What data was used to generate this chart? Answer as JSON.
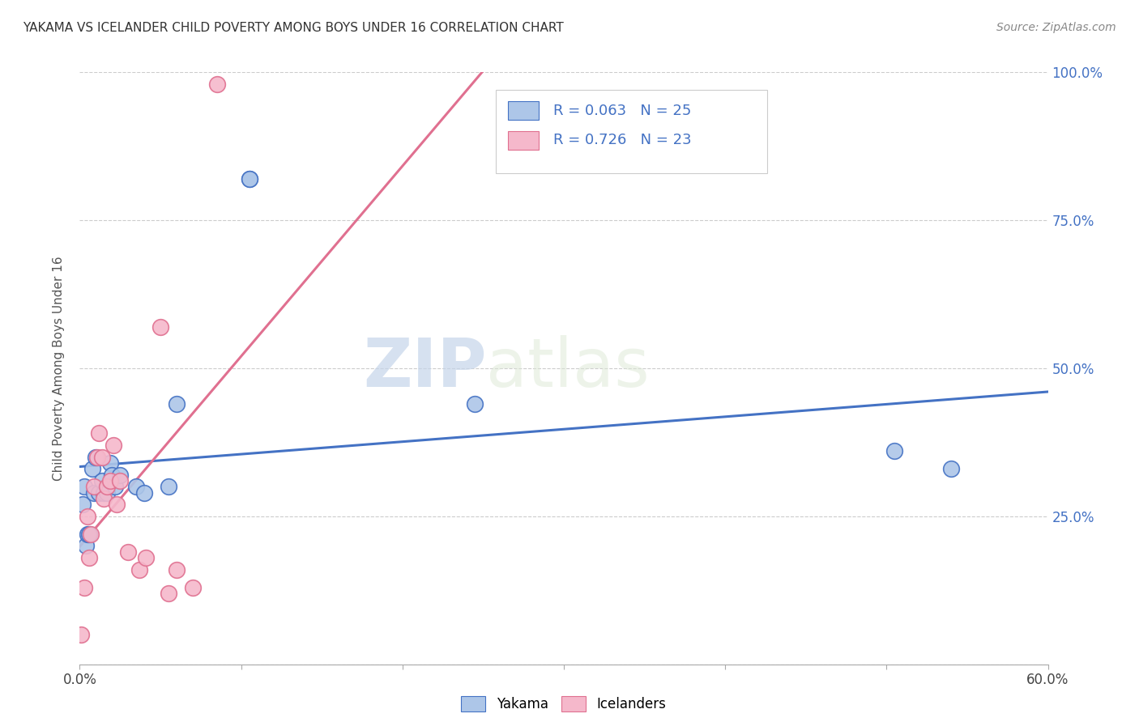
{
  "title": "YAKAMA VS ICELANDER CHILD POVERTY AMONG BOYS UNDER 16 CORRELATION CHART",
  "source": "Source: ZipAtlas.com",
  "ylabel": "Child Poverty Among Boys Under 16",
  "watermark_zip": "ZIP",
  "watermark_atlas": "atlas",
  "xlim": [
    0.0,
    0.6
  ],
  "ylim": [
    -0.05,
    1.05
  ],
  "plot_ylim": [
    0.0,
    1.0
  ],
  "xticks": [
    0.0,
    0.1,
    0.2,
    0.3,
    0.4,
    0.5,
    0.6
  ],
  "yticks": [
    0.0,
    0.25,
    0.5,
    0.75,
    1.0
  ],
  "xtick_labels": [
    "0.0%",
    "",
    "",
    "",
    "",
    "",
    "60.0%"
  ],
  "ytick_labels_right": [
    "",
    "25.0%",
    "50.0%",
    "75.0%",
    "100.0%"
  ],
  "yakama_R": 0.063,
  "yakama_N": 25,
  "icelander_R": 0.726,
  "icelander_N": 23,
  "yakama_color": "#adc6e8",
  "icelander_color": "#f5b8cb",
  "line_yakama_color": "#4472c4",
  "line_icelander_color": "#e07090",
  "yakama_x": [
    0.002,
    0.003,
    0.004,
    0.005,
    0.006,
    0.008,
    0.009,
    0.01,
    0.012,
    0.014,
    0.015,
    0.017,
    0.019,
    0.02,
    0.022,
    0.025,
    0.035,
    0.04,
    0.055,
    0.06,
    0.105,
    0.105,
    0.245,
    0.505,
    0.54
  ],
  "yakama_y": [
    0.27,
    0.3,
    0.2,
    0.22,
    0.22,
    0.33,
    0.29,
    0.35,
    0.29,
    0.31,
    0.29,
    0.29,
    0.34,
    0.32,
    0.3,
    0.32,
    0.3,
    0.29,
    0.3,
    0.44,
    0.82,
    0.82,
    0.44,
    0.36,
    0.33
  ],
  "icelander_x": [
    0.001,
    0.003,
    0.005,
    0.006,
    0.007,
    0.009,
    0.011,
    0.012,
    0.014,
    0.015,
    0.017,
    0.019,
    0.021,
    0.023,
    0.025,
    0.03,
    0.037,
    0.041,
    0.05,
    0.055,
    0.06,
    0.07,
    0.085
  ],
  "icelander_y": [
    0.05,
    0.13,
    0.25,
    0.18,
    0.22,
    0.3,
    0.35,
    0.39,
    0.35,
    0.28,
    0.3,
    0.31,
    0.37,
    0.27,
    0.31,
    0.19,
    0.16,
    0.18,
    0.57,
    0.12,
    0.16,
    0.13,
    0.98
  ]
}
